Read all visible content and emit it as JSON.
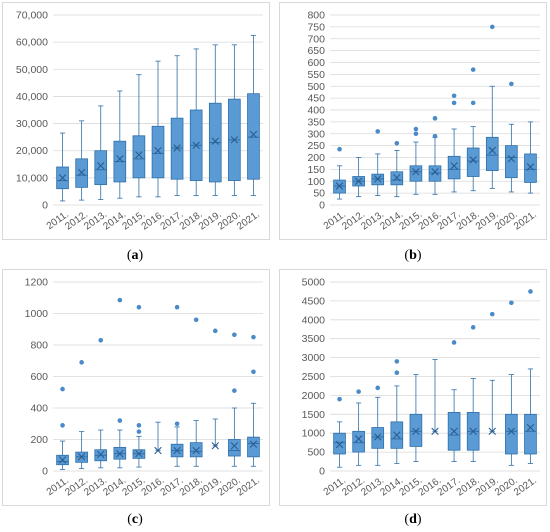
{
  "figure": {
    "panel_labels": [
      "a",
      "b",
      "c",
      "d"
    ],
    "colors": {
      "box_fill": "#5b9bd5",
      "box_stroke": "#2f6fa8",
      "grid": "#d9d9d9",
      "text": "#595959",
      "outlier": "#4a8ac8"
    }
  },
  "chart_data": [
    {
      "label": "a",
      "type": "box",
      "title": "",
      "xlabel": "",
      "ylabel": "",
      "categories": [
        "2011.",
        "2012.",
        "2013.",
        "2014.",
        "2015.",
        "2016.",
        "2017.",
        "2018.",
        "2019.",
        "2020.",
        "2021."
      ],
      "ylim": [
        0,
        70000
      ],
      "yticks": [
        0,
        10000,
        20000,
        30000,
        40000,
        50000,
        60000,
        70000
      ],
      "ytick_labels": [
        "0",
        "10,000",
        "20,000",
        "30,000",
        "40,000",
        "50,000",
        "60,000",
        "70,000"
      ],
      "grid": true,
      "boxes": [
        {
          "min": 1500,
          "q1": 6000,
          "median": 9000,
          "q3": 14000,
          "max": 26500,
          "mean": 10000,
          "outliers": []
        },
        {
          "min": 1800,
          "q1": 6500,
          "median": 11000,
          "q3": 17000,
          "max": 31000,
          "mean": 12000,
          "outliers": []
        },
        {
          "min": 2000,
          "q1": 7500,
          "median": 13000,
          "q3": 20000,
          "max": 36500,
          "mean": 14500,
          "outliers": []
        },
        {
          "min": 2500,
          "q1": 8500,
          "median": 16000,
          "q3": 23500,
          "max": 42000,
          "mean": 17000,
          "outliers": []
        },
        {
          "min": 3000,
          "q1": 10000,
          "median": 17000,
          "q3": 25500,
          "max": 48000,
          "mean": 18500,
          "outliers": []
        },
        {
          "min": 3000,
          "q1": 10000,
          "median": 19000,
          "q3": 29000,
          "max": 53000,
          "mean": 20000,
          "outliers": []
        },
        {
          "min": 3500,
          "q1": 9500,
          "median": 21000,
          "q3": 32000,
          "max": 55000,
          "mean": 21000,
          "outliers": []
        },
        {
          "min": 3500,
          "q1": 9000,
          "median": 22000,
          "q3": 35000,
          "max": 57500,
          "mean": 22000,
          "outliers": []
        },
        {
          "min": 3500,
          "q1": 8500,
          "median": 23000,
          "q3": 37500,
          "max": 59000,
          "mean": 23500,
          "outliers": []
        },
        {
          "min": 3500,
          "q1": 9000,
          "median": 24000,
          "q3": 39000,
          "max": 59000,
          "mean": 24000,
          "outliers": []
        },
        {
          "min": 3500,
          "q1": 9500,
          "median": 25000,
          "q3": 41000,
          "max": 62500,
          "mean": 26000,
          "outliers": []
        }
      ]
    },
    {
      "label": "b",
      "type": "box",
      "title": "",
      "xlabel": "",
      "ylabel": "",
      "categories": [
        "2011.",
        "2012.",
        "2013.",
        "2014.",
        "2015.",
        "2016.",
        "2017.",
        "2018.",
        "2019.",
        "2020.",
        "2021."
      ],
      "ylim": [
        0,
        800
      ],
      "yticks": [
        0,
        50,
        100,
        150,
        200,
        250,
        300,
        350,
        400,
        450,
        500,
        550,
        600,
        650,
        700,
        750,
        800
      ],
      "ytick_labels": [
        "0",
        "50",
        "100",
        "150",
        "200",
        "250",
        "300",
        "350",
        "400",
        "450",
        "500",
        "550",
        "600",
        "650",
        "700",
        "750",
        "800"
      ],
      "grid": true,
      "boxes": [
        {
          "min": 25,
          "q1": 50,
          "median": 80,
          "q3": 105,
          "max": 165,
          "mean": 80,
          "outliers": [
            235
          ]
        },
        {
          "min": 35,
          "q1": 80,
          "median": 100,
          "q3": 120,
          "max": 200,
          "mean": 100,
          "outliers": []
        },
        {
          "min": 40,
          "q1": 85,
          "median": 110,
          "q3": 130,
          "max": 215,
          "mean": 110,
          "outliers": [
            310
          ]
        },
        {
          "min": 35,
          "q1": 85,
          "median": 105,
          "q3": 140,
          "max": 230,
          "mean": 115,
          "outliers": [
            260
          ]
        },
        {
          "min": 45,
          "q1": 100,
          "median": 140,
          "q3": 165,
          "max": 265,
          "mean": 140,
          "outliers": [
            300,
            320
          ]
        },
        {
          "min": 45,
          "q1": 100,
          "median": 135,
          "q3": 165,
          "max": 285,
          "mean": 140,
          "outliers": [
            290,
            365
          ]
        },
        {
          "min": 55,
          "q1": 110,
          "median": 150,
          "q3": 205,
          "max": 320,
          "mean": 165,
          "outliers": [
            430,
            460
          ]
        },
        {
          "min": 60,
          "q1": 120,
          "median": 185,
          "q3": 240,
          "max": 330,
          "mean": 190,
          "outliers": [
            430,
            570
          ]
        },
        {
          "min": 70,
          "q1": 145,
          "median": 210,
          "q3": 285,
          "max": 500,
          "mean": 230,
          "outliers": [
            750
          ]
        },
        {
          "min": 55,
          "q1": 115,
          "median": 200,
          "q3": 250,
          "max": 340,
          "mean": 195,
          "outliers": [
            510
          ]
        },
        {
          "min": 50,
          "q1": 95,
          "median": 150,
          "q3": 215,
          "max": 350,
          "mean": 160,
          "outliers": []
        }
      ]
    },
    {
      "label": "c",
      "type": "box",
      "title": "",
      "xlabel": "",
      "ylabel": "",
      "categories": [
        "2011.",
        "2012.",
        "2013.",
        "2014.",
        "2015.",
        "2016.",
        "2017.",
        "2018.",
        "2019.",
        "2020.",
        "2021."
      ],
      "ylim": [
        0,
        1200
      ],
      "yticks": [
        0,
        200,
        400,
        600,
        800,
        1000,
        1200
      ],
      "ytick_labels": [
        "0",
        "200",
        "400",
        "600",
        "800",
        "1000",
        "1200"
      ],
      "grid": true,
      "boxes": [
        {
          "min": 10,
          "q1": 40,
          "median": 60,
          "q3": 100,
          "max": 190,
          "mean": 70,
          "outliers": [
            290,
            520
          ]
        },
        {
          "min": 15,
          "q1": 55,
          "median": 90,
          "q3": 120,
          "max": 250,
          "mean": 90,
          "outliers": [
            690
          ]
        },
        {
          "min": 20,
          "q1": 65,
          "median": 100,
          "q3": 135,
          "max": 260,
          "mean": 105,
          "outliers": [
            830
          ]
        },
        {
          "min": 20,
          "q1": 75,
          "median": 110,
          "q3": 150,
          "max": 260,
          "mean": 110,
          "outliers": [
            320,
            1085
          ]
        },
        {
          "min": 25,
          "q1": 80,
          "median": 110,
          "q3": 135,
          "max": 220,
          "mean": 110,
          "outliers": [
            250,
            290,
            1040
          ]
        },
        {
          "min": 130,
          "q1": 130,
          "median": 130,
          "q3": 130,
          "max": 310,
          "mean": 130,
          "outliers": []
        },
        {
          "min": 30,
          "q1": 90,
          "median": 130,
          "q3": 170,
          "max": 280,
          "mean": 130,
          "outliers": [
            300,
            1040
          ]
        },
        {
          "min": 30,
          "q1": 90,
          "median": 125,
          "q3": 180,
          "max": 320,
          "mean": 130,
          "outliers": [
            960
          ]
        },
        {
          "min": 160,
          "q1": 160,
          "median": 160,
          "q3": 160,
          "max": 330,
          "mean": 160,
          "outliers": [
            890
          ]
        },
        {
          "min": 30,
          "q1": 95,
          "median": 130,
          "q3": 200,
          "max": 400,
          "mean": 160,
          "outliers": [
            510,
            865
          ]
        },
        {
          "min": 30,
          "q1": 90,
          "median": 175,
          "q3": 215,
          "max": 430,
          "mean": 170,
          "outliers": [
            630,
            850
          ]
        }
      ]
    },
    {
      "label": "d",
      "type": "box",
      "title": "",
      "xlabel": "",
      "ylabel": "",
      "categories": [
        "2011.",
        "2012.",
        "2013.",
        "2014.",
        "2015.",
        "2016.",
        "2017.",
        "2018.",
        "2019.",
        "2020.",
        "2021."
      ],
      "ylim": [
        0,
        5000
      ],
      "yticks": [
        0,
        500,
        1000,
        1500,
        2000,
        2500,
        3000,
        3500,
        4000,
        4500,
        5000
      ],
      "ytick_labels": [
        "0",
        "500",
        "1000",
        "1500",
        "2000",
        "2500",
        "3000",
        "3500",
        "4000",
        "4500",
        "5000"
      ],
      "grid": true,
      "boxes": [
        {
          "min": 100,
          "q1": 450,
          "median": 750,
          "q3": 1000,
          "max": 1300,
          "mean": 700,
          "outliers": [
            1900
          ]
        },
        {
          "min": 150,
          "q1": 500,
          "median": 750,
          "q3": 1050,
          "max": 1800,
          "mean": 850,
          "outliers": [
            2100
          ]
        },
        {
          "min": 150,
          "q1": 600,
          "median": 900,
          "q3": 1150,
          "max": 1950,
          "mean": 900,
          "outliers": [
            2200
          ]
        },
        {
          "min": 200,
          "q1": 600,
          "median": 850,
          "q3": 1300,
          "max": 2250,
          "mean": 950,
          "outliers": [
            2600,
            2900
          ]
        },
        {
          "min": 250,
          "q1": 650,
          "median": 1050,
          "q3": 1500,
          "max": 2550,
          "mean": 1050,
          "outliers": []
        },
        {
          "min": 1050,
          "q1": 1050,
          "median": 1050,
          "q3": 1050,
          "max": 2950,
          "mean": 1050,
          "outliers": []
        },
        {
          "min": 250,
          "q1": 550,
          "median": 950,
          "q3": 1550,
          "max": 2150,
          "mean": 1050,
          "outliers": [
            3400
          ]
        },
        {
          "min": 250,
          "q1": 550,
          "median": 1050,
          "q3": 1550,
          "max": 2450,
          "mean": 1050,
          "outliers": [
            3800
          ]
        },
        {
          "min": 1050,
          "q1": 1050,
          "median": 1050,
          "q3": 1050,
          "max": 2400,
          "mean": 1050,
          "outliers": [
            4150
          ]
        },
        {
          "min": 150,
          "q1": 450,
          "median": 1050,
          "q3": 1500,
          "max": 2550,
          "mean": 1050,
          "outliers": [
            4450
          ]
        },
        {
          "min": 200,
          "q1": 450,
          "median": 1050,
          "q3": 1500,
          "max": 2700,
          "mean": 1150,
          "outliers": [
            4750
          ]
        }
      ]
    }
  ]
}
